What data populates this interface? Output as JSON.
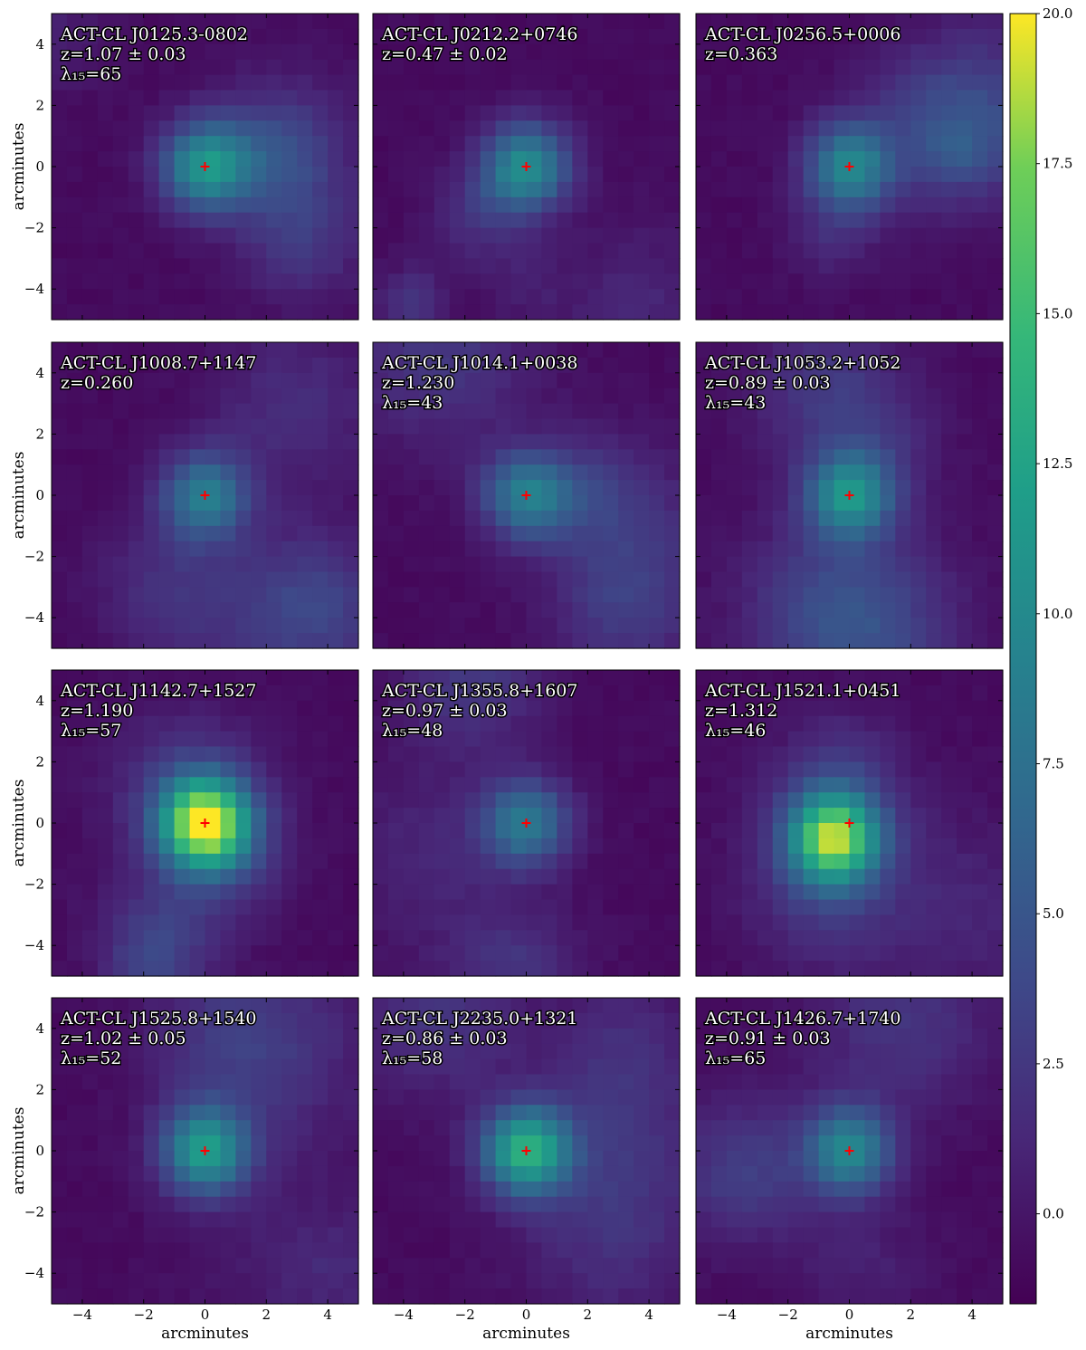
{
  "chart_data": {
    "type": "heatmap",
    "xlabel": "arcminutes",
    "ylabel": "arcminutes",
    "xlim": [
      -5,
      5
    ],
    "ylim": [
      -5,
      5
    ],
    "xticks": [
      "−4",
      "−2",
      "0",
      "2",
      "4"
    ],
    "yticks": [
      "4",
      "2",
      "0",
      "−2",
      "−4"
    ],
    "colormap": "viridis",
    "colorbar": {
      "range": [
        -1.5,
        20.0
      ],
      "ticks": [
        "20.0",
        "17.5",
        "15.0",
        "12.5",
        "10.0",
        "7.5",
        "5.0",
        "2.5",
        "0.0"
      ]
    },
    "center_marker": {
      "symbol": "+",
      "color": "#ff0000"
    },
    "panels": [
      {
        "name": "ACT-CL J0125.3-0802",
        "z": "z=1.07 ± 0.03",
        "lambda": "λ₁₅=65",
        "peak": 11,
        "cx": 0,
        "cy": 0
      },
      {
        "name": "ACT-CL J0212.2+0746",
        "z": "z=0.47 ± 0.02",
        "lambda": "",
        "peak": 11,
        "cx": 0,
        "cy": 0
      },
      {
        "name": "ACT-CL J0256.5+0006",
        "z": "z=0.363",
        "lambda": "",
        "peak": 10,
        "cx": 0,
        "cy": 0
      },
      {
        "name": "ACT-CL J1008.7+1147",
        "z": "z=0.260",
        "lambda": "",
        "peak": 9,
        "cx": 0,
        "cy": 0
      },
      {
        "name": "ACT-CL J1014.1+0038",
        "z": "z=1.230",
        "lambda": "λ₁₅=43",
        "peak": 9,
        "cx": 0,
        "cy": 0
      },
      {
        "name": "ACT-CL J1053.2+1052",
        "z": "z=0.89 ± 0.03",
        "lambda": "λ₁₅=43",
        "peak": 11,
        "cx": 0,
        "cy": 0
      },
      {
        "name": "ACT-CL J1142.7+1527",
        "z": "z=1.190",
        "lambda": "λ₁₅=57",
        "peak": 19,
        "cx": 0,
        "cy": 0
      },
      {
        "name": "ACT-CL J1355.8+1607",
        "z": "z=0.97 ± 0.03",
        "lambda": "λ₁₅=48",
        "peak": 9,
        "cx": 0,
        "cy": 0
      },
      {
        "name": "ACT-CL J1521.1+0451",
        "z": "z=1.312",
        "lambda": "λ₁₅=46",
        "peak": 16,
        "cx": -0.5,
        "cy": -0.5
      },
      {
        "name": "ACT-CL J1525.8+1540",
        "z": "z=1.02 ± 0.05",
        "lambda": "λ₁₅=52",
        "peak": 12,
        "cx": 0,
        "cy": 0
      },
      {
        "name": "ACT-CL J2235.0+1321",
        "z": "z=0.86 ± 0.03",
        "lambda": "λ₁₅=58",
        "peak": 14,
        "cx": 0,
        "cy": 0
      },
      {
        "name": "ACT-CL J1426.7+1740",
        "z": "z=0.91 ± 0.03",
        "lambda": "λ₁₅=65",
        "peak": 10,
        "cx": 0,
        "cy": 0
      }
    ]
  }
}
